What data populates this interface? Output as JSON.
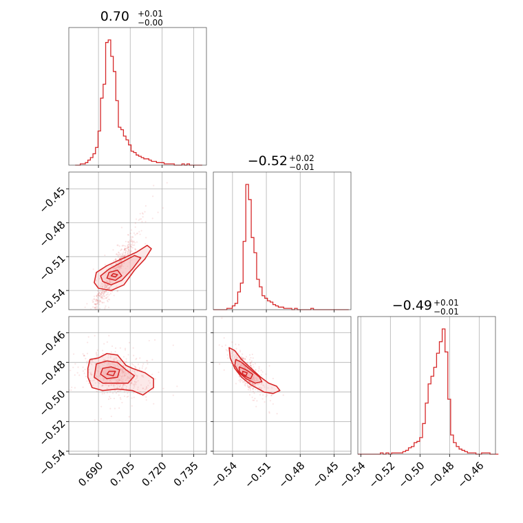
{
  "chart_data": {
    "type": "corner",
    "color": "#d62728",
    "fill_color": "#f4b6b6",
    "grid": true,
    "titles": [
      {
        "value": "0.70",
        "plus": "+0.01",
        "minus": "−0.00"
      },
      {
        "value": "−0.52",
        "plus": "+0.02",
        "minus": "−0.01"
      },
      {
        "value": "−0.49",
        "plus": "+0.01",
        "minus": "−0.01"
      }
    ],
    "params": [
      {
        "range": [
          0.676,
          0.741
        ],
        "ticks": [
          0.69,
          0.705,
          0.72,
          0.735
        ],
        "tick_labels": [
          "0.690",
          "0.705",
          "0.720",
          "0.735"
        ]
      },
      {
        "range": [
          -0.557,
          -0.435
        ],
        "ticks": [
          -0.54,
          -0.51,
          -0.48,
          -0.45
        ],
        "tick_labels": [
          "−0.54",
          "−0.51",
          "−0.48",
          "−0.45"
        ]
      },
      {
        "range": [
          -0.542,
          -0.449
        ],
        "ticks": [
          -0.54,
          -0.52,
          -0.5,
          -0.48,
          -0.46
        ],
        "tick_labels": [
          "−0.54",
          "−0.52",
          "−0.50",
          "−0.48",
          "−0.46"
        ]
      }
    ],
    "histograms": [
      {
        "bin_start": 0.679,
        "bin_width": 0.0012,
        "counts": [
          0,
          0,
          1,
          1,
          2,
          4,
          6,
          9,
          14,
          27,
          53,
          64,
          97,
          99,
          86,
          74,
          51,
          30,
          28,
          23,
          20,
          16,
          11,
          10,
          8,
          7,
          6,
          5,
          5,
          4,
          3,
          3,
          2,
          2,
          2,
          1,
          1,
          1,
          1,
          0,
          0,
          0,
          1,
          0,
          1,
          0,
          0,
          0,
          0,
          0
        ]
      },
      {
        "bin_start": -0.557,
        "bin_width": 0.0024,
        "counts": [
          0,
          0,
          0,
          0,
          0,
          1,
          1,
          3,
          5,
          14,
          21,
          54,
          99,
          87,
          57,
          45,
          24,
          18,
          11,
          9,
          7,
          6,
          4,
          3,
          2,
          2,
          1,
          1,
          1,
          0,
          1,
          0,
          0,
          0,
          0,
          0,
          1,
          0,
          0,
          0,
          0,
          0,
          0,
          0,
          0,
          0,
          0,
          0,
          0,
          0
        ]
      },
      {
        "bin_start": -0.542,
        "bin_width": 0.0019,
        "counts": [
          0,
          0,
          0,
          0,
          0,
          0,
          0,
          0,
          1,
          0,
          1,
          0,
          1,
          1,
          1,
          1,
          2,
          3,
          5,
          6,
          9,
          10,
          13,
          24,
          40,
          55,
          61,
          68,
          79,
          88,
          98,
          80,
          43,
          15,
          9,
          6,
          4,
          3,
          2,
          1,
          1,
          1,
          0,
          0,
          1,
          1,
          1,
          0,
          0,
          0
        ]
      }
    ],
    "scatter_2d": [
      {
        "x_param": 0,
        "y_param": 1,
        "center": [
          0.697,
          -0.526
        ],
        "spread_x": 0.0048,
        "slope": 3.2,
        "spread_y_perp": 0.005
      },
      {
        "x_param": 0,
        "y_param": 2,
        "center": [
          0.698,
          -0.488
        ],
        "spread_x": 0.0055,
        "slope": -0.25,
        "spread_y_perp": 0.0055
      },
      {
        "x_param": 1,
        "y_param": 2,
        "center": [
          -0.527,
          -0.487
        ],
        "spread_x": 0.0055,
        "slope": -0.75,
        "spread_y_perp": 0.0035
      }
    ],
    "contours_2d": [
      {
        "x_param": 0,
        "y_param": 1,
        "levels": [
          [
            [
              0.688,
              -0.533
            ],
            [
              0.69,
              -0.538
            ],
            [
              0.696,
              -0.54
            ],
            [
              0.702,
              -0.535
            ],
            [
              0.707,
              -0.522
            ],
            [
              0.712,
              -0.512
            ],
            [
              0.715,
              -0.503
            ],
            [
              0.713,
              -0.5
            ],
            [
              0.708,
              -0.506
            ],
            [
              0.701,
              -0.512
            ],
            [
              0.694,
              -0.518
            ],
            [
              0.689,
              -0.524
            ]
          ],
          [
            [
              0.692,
              -0.532
            ],
            [
              0.696,
              -0.535
            ],
            [
              0.701,
              -0.531
            ],
            [
              0.706,
              -0.521
            ],
            [
              0.71,
              -0.511
            ],
            [
              0.707,
              -0.509
            ],
            [
              0.701,
              -0.515
            ],
            [
              0.695,
              -0.521
            ],
            [
              0.691,
              -0.527
            ]
          ],
          [
            [
              0.694,
              -0.529
            ],
            [
              0.698,
              -0.531
            ],
            [
              0.701,
              -0.527
            ],
            [
              0.699,
              -0.522
            ],
            [
              0.695,
              -0.524
            ]
          ],
          [
            [
              0.696,
              -0.527
            ],
            [
              0.698,
              -0.528
            ],
            [
              0.699,
              -0.526
            ],
            [
              0.697,
              -0.525
            ]
          ]
        ]
      },
      {
        "x_param": 0,
        "y_param": 2,
        "levels": [
          [
            [
              0.686,
              -0.478
            ],
            [
              0.69,
              -0.477
            ],
            [
              0.694,
              -0.474
            ],
            [
              0.699,
              -0.475
            ],
            [
              0.703,
              -0.482
            ],
            [
              0.706,
              -0.484
            ],
            [
              0.712,
              -0.487
            ],
            [
              0.716,
              -0.491
            ],
            [
              0.716,
              -0.497
            ],
            [
              0.711,
              -0.502
            ],
            [
              0.706,
              -0.499
            ],
            [
              0.699,
              -0.498
            ],
            [
              0.692,
              -0.499
            ],
            [
              0.687,
              -0.497
            ],
            [
              0.685,
              -0.49
            ],
            [
              0.685,
              -0.484
            ]
          ],
          [
            [
              0.689,
              -0.481
            ],
            [
              0.694,
              -0.479
            ],
            [
              0.699,
              -0.48
            ],
            [
              0.703,
              -0.485
            ],
            [
              0.707,
              -0.489
            ],
            [
              0.704,
              -0.494
            ],
            [
              0.698,
              -0.494
            ],
            [
              0.692,
              -0.494
            ],
            [
              0.688,
              -0.49
            ]
          ],
          [
            [
              0.692,
              -0.484
            ],
            [
              0.696,
              -0.483
            ],
            [
              0.7,
              -0.485
            ],
            [
              0.699,
              -0.49
            ],
            [
              0.694,
              -0.491
            ],
            [
              0.691,
              -0.488
            ]
          ],
          [
            [
              0.695,
              -0.486
            ],
            [
              0.698,
              -0.486
            ],
            [
              0.697,
              -0.489
            ],
            [
              0.694,
              -0.488
            ]
          ]
        ]
      },
      {
        "x_param": 1,
        "y_param": 2,
        "levels": [
          [
            [
              -0.543,
              -0.47
            ],
            [
              -0.538,
              -0.472
            ],
            [
              -0.532,
              -0.478
            ],
            [
              -0.525,
              -0.483
            ],
            [
              -0.515,
              -0.49
            ],
            [
              -0.508,
              -0.494
            ],
            [
              -0.501,
              -0.496
            ],
            [
              -0.498,
              -0.499
            ],
            [
              -0.504,
              -0.501
            ],
            [
              -0.512,
              -0.5
            ],
            [
              -0.524,
              -0.495
            ],
            [
              -0.532,
              -0.49
            ],
            [
              -0.538,
              -0.484
            ],
            [
              -0.542,
              -0.477
            ]
          ],
          [
            [
              -0.537,
              -0.478
            ],
            [
              -0.532,
              -0.48
            ],
            [
              -0.524,
              -0.485
            ],
            [
              -0.516,
              -0.49
            ],
            [
              -0.514,
              -0.493
            ],
            [
              -0.52,
              -0.494
            ],
            [
              -0.528,
              -0.491
            ],
            [
              -0.534,
              -0.487
            ],
            [
              -0.538,
              -0.482
            ]
          ],
          [
            [
              -0.534,
              -0.483
            ],
            [
              -0.528,
              -0.485
            ],
            [
              -0.522,
              -0.488
            ],
            [
              -0.524,
              -0.491
            ],
            [
              -0.53,
              -0.489
            ],
            [
              -0.534,
              -0.486
            ]
          ],
          [
            [
              -0.531,
              -0.486
            ],
            [
              -0.527,
              -0.487
            ],
            [
              -0.528,
              -0.489
            ],
            [
              -0.531,
              -0.488
            ]
          ]
        ]
      }
    ]
  }
}
